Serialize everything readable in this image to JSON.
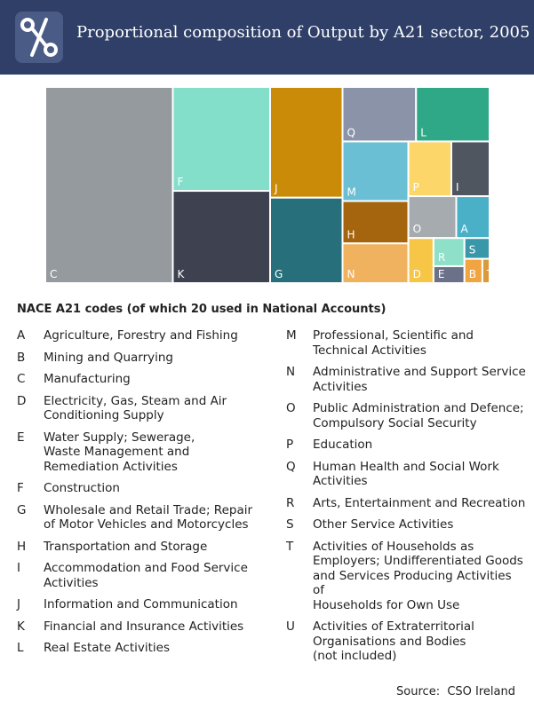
{
  "chart_data": {
    "type": "treemap",
    "title": "Proportional composition of Output by A21 sector, 2005",
    "categories": [
      "C",
      "F",
      "K",
      "J",
      "G",
      "Q",
      "L",
      "M",
      "H",
      "N",
      "P",
      "I",
      "O",
      "A",
      "D",
      "R",
      "E",
      "S",
      "B",
      "T"
    ],
    "values": [
      28.7,
      11.6,
      10.3,
      9.2,
      7.1,
      4.6,
      4.6,
      4.5,
      3.2,
      3.0,
      2.7,
      2.4,
      2.3,
      1.6,
      1.3,
      1.0,
      0.6,
      0.6,
      0.5,
      0.2
    ],
    "colors": [
      "#959a9f",
      "#83dfc9",
      "#3e4150",
      "#c98b08",
      "#266f7b",
      "#8a93a8",
      "#2ea886",
      "#6bbfd4",
      "#a5650f",
      "#f0b25e",
      "#fdd66a",
      "#50565f",
      "#a6abb0",
      "#4ab0c8",
      "#f7c647",
      "#8fe0c8",
      "#6a7189",
      "#3897a8",
      "#f0a540",
      "#d99b3a"
    ]
  },
  "legend": {
    "heading": "NACE A21 codes (of which 20 used in National Accounts)",
    "items": [
      {
        "code": "A",
        "description": "Agriculture, Forestry and Fishing"
      },
      {
        "code": "B",
        "description": "Mining and Quarrying"
      },
      {
        "code": "C",
        "description": "Manufacturing"
      },
      {
        "code": "D",
        "description": "Electricity, Gas, Steam and Air\nConditioning Supply"
      },
      {
        "code": "E",
        "description": "Water Supply; Sewerage,\nWaste Management and\nRemediation Activities"
      },
      {
        "code": "F",
        "description": "Construction"
      },
      {
        "code": "G",
        "description": "Wholesale and Retail Trade; Repair\nof Motor Vehicles and Motorcycles"
      },
      {
        "code": "H",
        "description": "Transportation and Storage"
      },
      {
        "code": "I",
        "description": "Accommodation and Food Service\nActivities"
      },
      {
        "code": "J",
        "description": "Information and Communication"
      },
      {
        "code": "K",
        "description": "Financial and Insurance Activities"
      },
      {
        "code": "L",
        "description": "Real Estate Activities"
      },
      {
        "code": "M",
        "description": "Professional, Scientific and\nTechnical Activities"
      },
      {
        "code": "N",
        "description": "Administrative and Support Service\nActivities"
      },
      {
        "code": "O",
        "description": "Public Administration and Defence;\nCompulsory Social Security"
      },
      {
        "code": "P",
        "description": "Education"
      },
      {
        "code": "Q",
        "description": "Human Health and Social Work\nActivities"
      },
      {
        "code": "R",
        "description": "Arts, Entertainment and Recreation"
      },
      {
        "code": "S",
        "description": "Other Service Activities"
      },
      {
        "code": "T",
        "description": "Activities of Households as\nEmployers; Undifferentiated Goods\nand Services Producing Activities of\nHouseholds for Own Use"
      },
      {
        "code": "U",
        "description": "Activities of Extraterritorial\nOrganisations and Bodies\n(not included)"
      }
    ]
  },
  "source": "Source:  CSO Ireland"
}
